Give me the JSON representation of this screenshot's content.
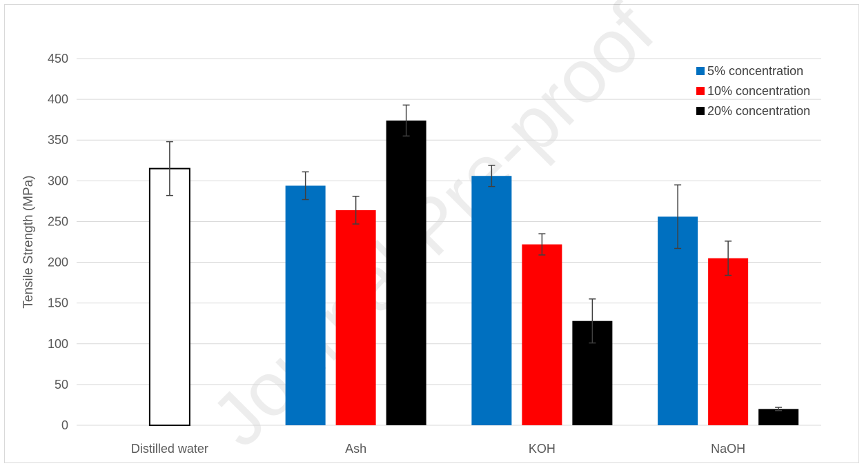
{
  "watermark": "Journal Pre-proof",
  "colors": {
    "control": "#ffffff",
    "s5": "#0070c0",
    "s10": "#ff0000",
    "s20": "#000000",
    "grid": "#d9d9d9",
    "error": "#404040"
  },
  "chart_data": {
    "type": "bar",
    "title": "",
    "xlabel": "",
    "ylabel": "Tensile Strength (MPa)",
    "ylim": [
      0,
      450
    ],
    "yticks": [
      0,
      50,
      100,
      150,
      200,
      250,
      300,
      350,
      400,
      450
    ],
    "categories": [
      "Distilled water",
      "Ash",
      "KOH",
      "NaOH"
    ],
    "grid": true,
    "legend_position": "top-right",
    "control": {
      "category": "Distilled water",
      "value": 315,
      "error": 33
    },
    "series": [
      {
        "name": "5% concentration",
        "values": [
          null,
          294,
          306,
          256
        ],
        "errors": [
          null,
          17,
          13,
          39
        ]
      },
      {
        "name": "10% concentration",
        "values": [
          null,
          264,
          222,
          205
        ],
        "errors": [
          null,
          17,
          13,
          21
        ]
      },
      {
        "name": "20% concentration",
        "values": [
          null,
          374,
          128,
          20
        ],
        "errors": [
          null,
          19,
          27,
          2
        ]
      }
    ]
  }
}
